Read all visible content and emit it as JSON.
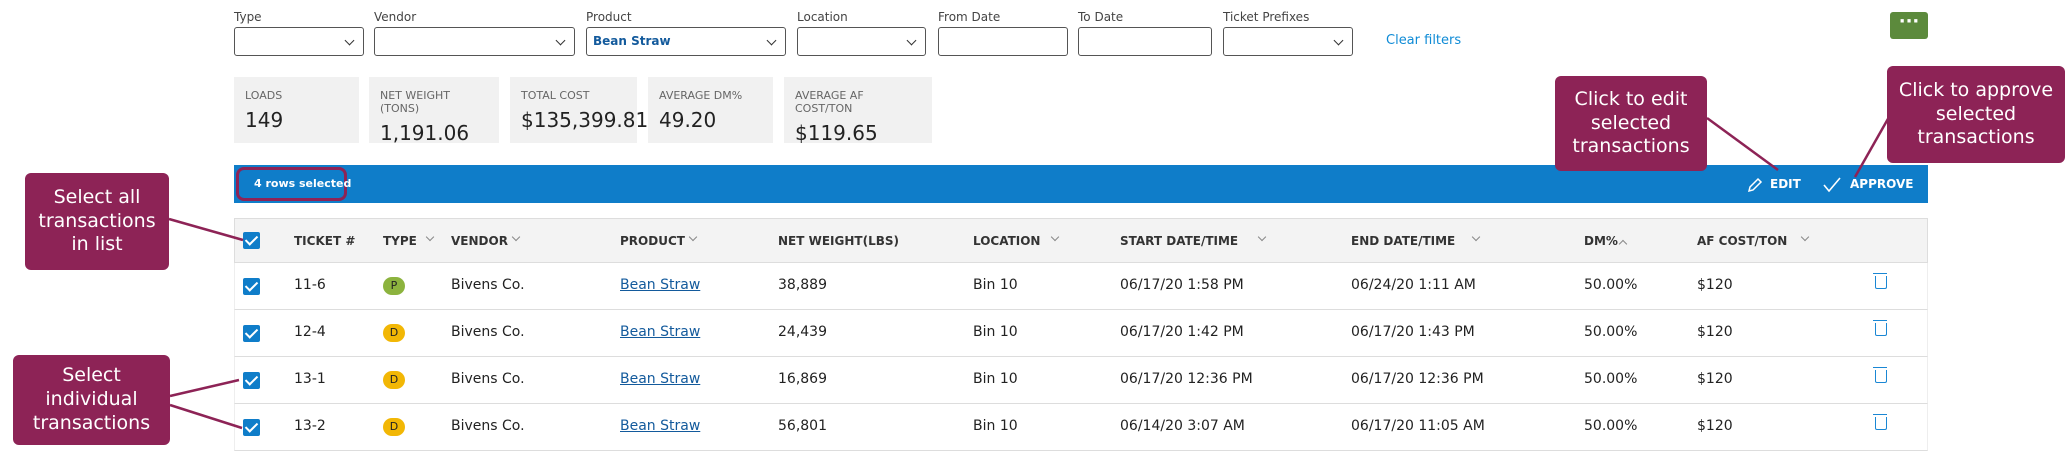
{
  "filters": [
    {
      "label": "Type",
      "value": null
    },
    {
      "label": "Vendor",
      "value": null
    },
    {
      "label": "Product",
      "value": "Bean Straw"
    },
    {
      "label": "Location",
      "value": null
    },
    {
      "label": "From Date",
      "value": null
    },
    {
      "label": "To Date",
      "value": null
    },
    {
      "label": "Ticket Prefixes",
      "value": null
    }
  ],
  "clear_filters": "Clear filters",
  "stats": [
    {
      "label": "LOADS",
      "value": "149"
    },
    {
      "label": "NET WEIGHT (TONS)",
      "value": "1,191.06"
    },
    {
      "label": "TOTAL COST",
      "value": "$135,399.81"
    },
    {
      "label": "AVERAGE DM%",
      "value": "49.20"
    },
    {
      "label": "AVERAGE AF COST/TON",
      "value": "$119.65"
    }
  ],
  "selection": {
    "text": "4 rows selected",
    "edit": "EDIT",
    "approve": "APPROVE"
  },
  "table": {
    "headers": [
      "TICKET #",
      "TYPE",
      "VENDOR",
      "PRODUCT",
      "NET WEIGHT(LBS)",
      "LOCATION",
      "START DATE/TIME",
      "END DATE/TIME",
      "DM%",
      "AF COST/TON"
    ],
    "rows": [
      {
        "ticket": "11-6",
        "type": "P",
        "type_color": "#8cb33e",
        "vendor": "Bivens Co.",
        "product": "Bean Straw",
        "net_weight": "38,889",
        "location": "Bin 10",
        "start": "06/17/20 1:58 PM",
        "end": "06/24/20 1:11 AM",
        "dm": "50.00%",
        "af_cost": "$120"
      },
      {
        "ticket": "12-4",
        "type": "D",
        "type_color": "#f2b705",
        "vendor": "Bivens Co.",
        "product": "Bean Straw",
        "net_weight": "24,439",
        "location": "Bin 10",
        "start": "06/17/20 1:42 PM",
        "end": "06/17/20 1:43 PM",
        "dm": "50.00%",
        "af_cost": "$120"
      },
      {
        "ticket": "13-1",
        "type": "D",
        "type_color": "#f2b705",
        "vendor": "Bivens Co.",
        "product": "Bean Straw",
        "net_weight": "16,869",
        "location": "Bin 10",
        "start": "06/17/20 12:36 PM",
        "end": "06/17/20 12:36 PM",
        "dm": "50.00%",
        "af_cost": "$120"
      },
      {
        "ticket": "13-2",
        "type": "D",
        "type_color": "#f2b705",
        "vendor": "Bivens Co.",
        "product": "Bean Straw",
        "net_weight": "56,801",
        "location": "Bin 10",
        "start": "06/14/20 3:07 AM",
        "end": "06/17/20 11:05 AM",
        "dm": "50.00%",
        "af_cost": "$120"
      }
    ]
  },
  "callouts": {
    "select_all": "Select all transactions in list",
    "select_individual": "Select individual transactions",
    "edit": "Click to edit selected transactions",
    "approve": "Click to approve selected transactions"
  }
}
